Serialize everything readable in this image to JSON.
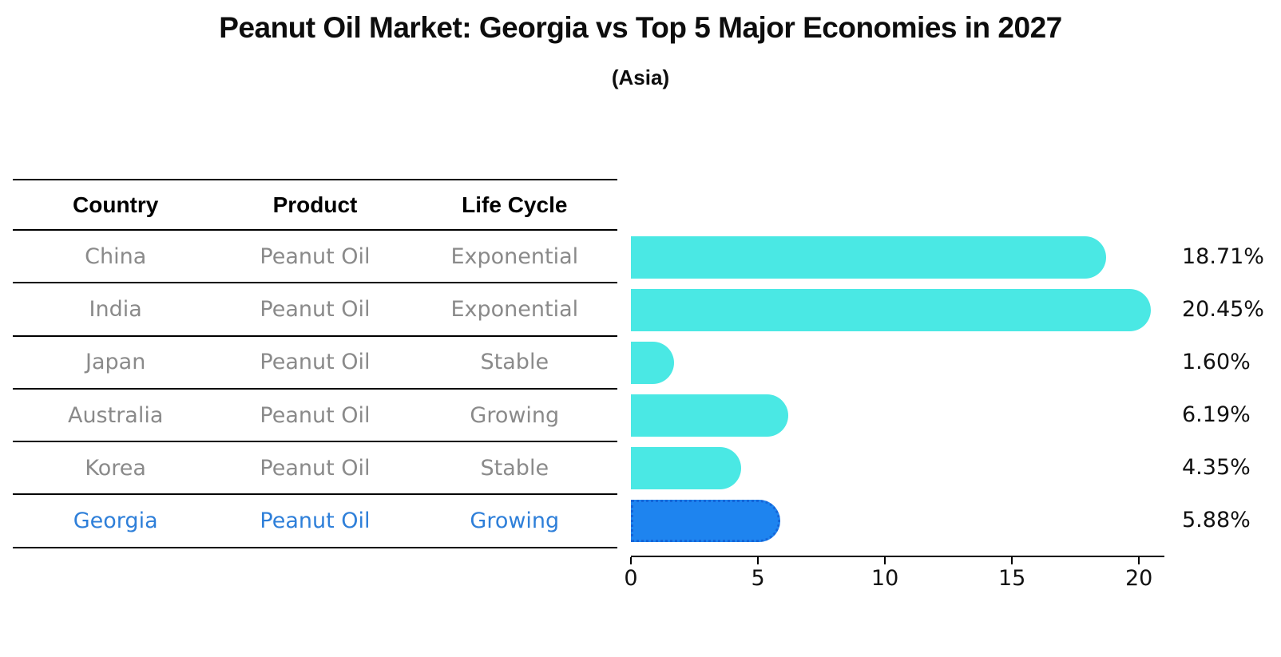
{
  "title": "Peanut Oil Market: Georgia vs Top 5 Major Economies in 2027",
  "subtitle": "(Asia)",
  "table": {
    "headers": [
      "Country",
      "Product",
      "Life Cycle"
    ],
    "rows": [
      {
        "country": "China",
        "product": "Peanut Oil",
        "life_cycle": "Exponential",
        "highlight": false
      },
      {
        "country": "India",
        "product": "Peanut Oil",
        "life_cycle": "Exponential",
        "highlight": false
      },
      {
        "country": "Japan",
        "product": "Peanut Oil",
        "life_cycle": "Stable",
        "highlight": false
      },
      {
        "country": "Australia",
        "product": "Peanut Oil",
        "life_cycle": "Growing",
        "highlight": false
      },
      {
        "country": "Korea",
        "product": "Peanut Oil",
        "life_cycle": "Stable",
        "highlight": false
      },
      {
        "country": "Georgia",
        "product": "Peanut Oil",
        "life_cycle": "Growing",
        "highlight": true
      }
    ]
  },
  "chart_data": {
    "type": "bar",
    "orientation": "horizontal",
    "title": "Peanut Oil Market: Georgia vs Top 5 Major Economies in 2027",
    "subtitle": "(Asia)",
    "categories": [
      "China",
      "India",
      "Japan",
      "Australia",
      "Korea",
      "Georgia"
    ],
    "values": [
      18.71,
      20.45,
      1.6,
      6.19,
      4.35,
      5.88
    ],
    "value_labels": [
      "18.71%",
      "20.45%",
      "1.60%",
      "6.19%",
      "4.35%",
      "5.88%"
    ],
    "x_ticks": [
      0,
      5,
      10,
      15,
      20
    ],
    "xlim": [
      0,
      21
    ],
    "grid": false,
    "legend": "none",
    "highlight_category": "Georgia",
    "colors": {
      "bar_default": "#4ae8e4",
      "bar_highlight": "#1e84ef",
      "bar_highlight_border": "#1565d8",
      "table_row_text": "#8a8a8a",
      "highlight_row_text": "#2e7fd9",
      "axis_and_labels": "#111111"
    }
  }
}
